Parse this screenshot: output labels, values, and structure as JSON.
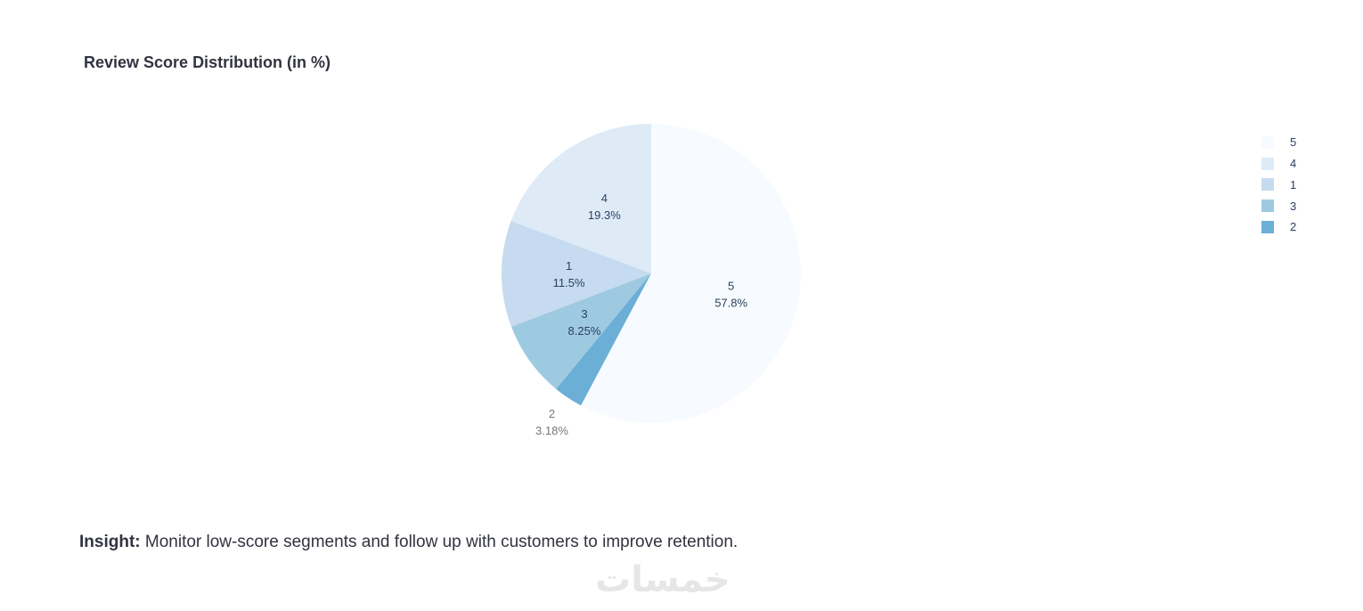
{
  "chart_data": {
    "type": "pie",
    "title": "Review Score Distribution (in %)",
    "slices": [
      {
        "label": "5",
        "value": 57.8,
        "percent_text": "57.8%",
        "color": "#f7fbff"
      },
      {
        "label": "2",
        "value": 3.18,
        "percent_text": "3.18%",
        "color": "#6baed6"
      },
      {
        "label": "3",
        "value": 8.25,
        "percent_text": "8.25%",
        "color": "#9ecae1"
      },
      {
        "label": "1",
        "value": 11.5,
        "percent_text": "11.5%",
        "color": "#c6dbef"
      },
      {
        "label": "4",
        "value": 19.3,
        "percent_text": "19.3%",
        "color": "#deebf7"
      }
    ],
    "legend": [
      {
        "label": "5",
        "color": "#f7fbff"
      },
      {
        "label": "4",
        "color": "#deebf7"
      },
      {
        "label": "1",
        "color": "#c6dbef"
      },
      {
        "label": "3",
        "color": "#9ecae1"
      },
      {
        "label": "2",
        "color": "#6baed6"
      }
    ],
    "legend_placement": "right",
    "direction": "clockwise",
    "start": "12 o'clock"
  },
  "insight": {
    "label": "Insight:",
    "text": " Monitor low-score segments and follow up with customers to improve retention."
  },
  "watermark": {
    "text": "خمسات"
  }
}
